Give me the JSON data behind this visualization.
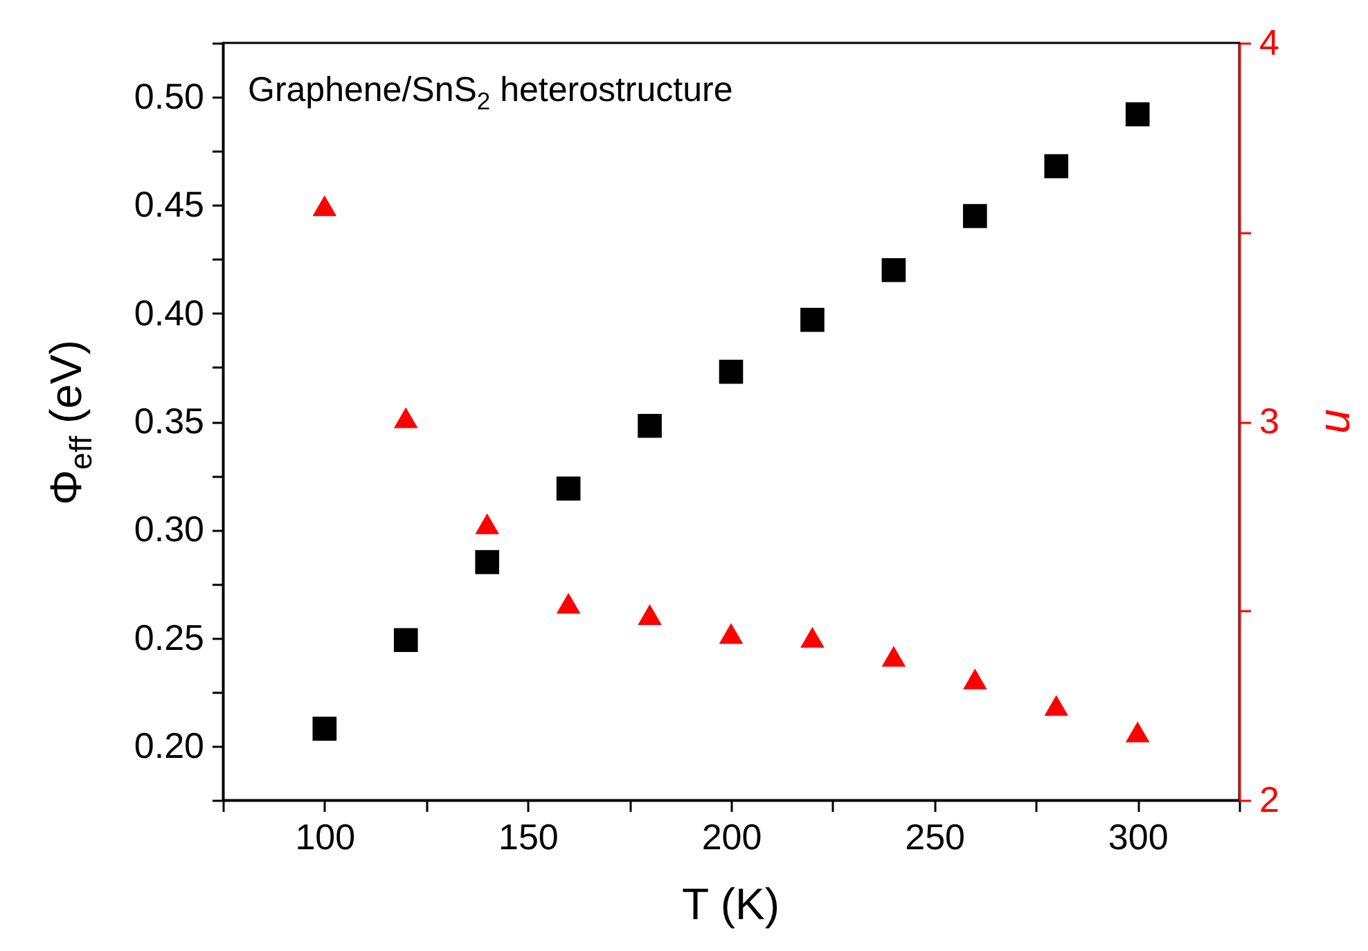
{
  "chart_data": {
    "type": "scatter",
    "xlabel": "T (K)",
    "ylabel": "Φ$_{eff}$ (eV)",
    "y2label": "n",
    "annotations": [
      "Graphene/SnS$_{2}$ heterostructure"
    ],
    "x": [
      100,
      120,
      140,
      160,
      180,
      200,
      220,
      240,
      260,
      280,
      300
    ],
    "xlim": [
      75,
      325
    ],
    "xticks": [
      {
        "value": 75,
        "label": null
      },
      100,
      {
        "value": 125,
        "label": null
      },
      150,
      {
        "value": 175,
        "label": null
      },
      200,
      {
        "value": 225,
        "label": null
      },
      250,
      {
        "value": 275,
        "label": null
      },
      300,
      {
        "value": 325,
        "label": null
      }
    ],
    "ylim": [
      0.175,
      0.525
    ],
    "yticks": [
      {
        "value": 0.175,
        "label": null
      },
      {
        "value": 0.2,
        "label": "0.20"
      },
      {
        "value": 0.225,
        "label": null
      },
      0.25,
      {
        "value": 0.275,
        "label": null
      },
      {
        "value": 0.3,
        "label": "0.30"
      },
      {
        "value": 0.325,
        "label": null
      },
      0.35,
      {
        "value": 0.375,
        "label": null
      },
      {
        "value": 0.4,
        "label": "0.40"
      },
      {
        "value": 0.425,
        "label": null
      },
      0.45,
      {
        "value": 0.475,
        "label": null
      },
      {
        "value": 0.5,
        "label": "0.50"
      },
      {
        "value": 0.525,
        "label": null
      }
    ],
    "y2lim": [
      2,
      4
    ],
    "y2ticks": [
      2,
      {
        "value": 2.5,
        "label": null
      },
      3,
      {
        "value": 3.5,
        "label": null
      },
      4
    ],
    "series": [
      {
        "color": "#000000",
        "marker": "square",
        "values": [
          0.208,
          0.249,
          0.285,
          0.319,
          0.348,
          0.373,
          0.397,
          0.42,
          0.445,
          0.468,
          0.492
        ]
      },
      {
        "color": "#ff0000",
        "marker": "triangle",
        "axis": "y2",
        "values": [
          3.57,
          3.01,
          2.73,
          2.52,
          2.49,
          2.44,
          2.43,
          2.38,
          2.32,
          2.25,
          2.18
        ]
      }
    ]
  }
}
